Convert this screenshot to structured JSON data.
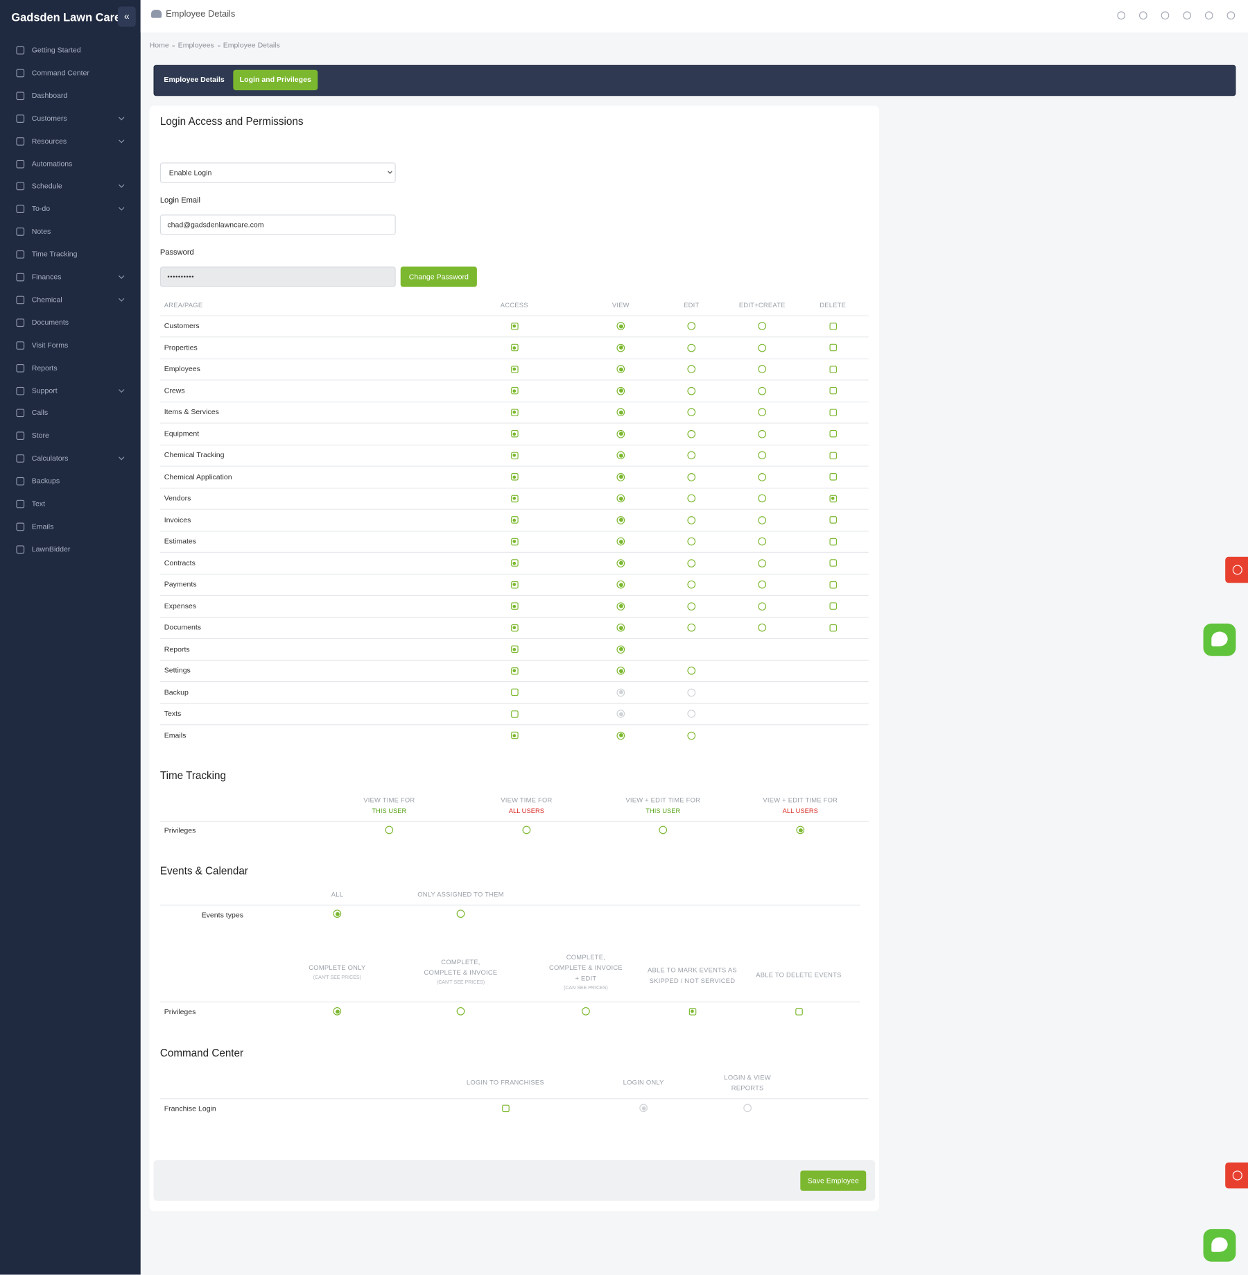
{
  "sidebar": {
    "brand": "Gadsden Lawn Care",
    "items": [
      {
        "label": "Getting Started",
        "expandable": false
      },
      {
        "label": "Command Center",
        "expandable": false
      },
      {
        "label": "Dashboard",
        "expandable": false
      },
      {
        "label": "Customers",
        "expandable": true
      },
      {
        "label": "Resources",
        "expandable": true
      },
      {
        "label": "Automations",
        "expandable": false
      },
      {
        "label": "Schedule",
        "expandable": true
      },
      {
        "label": "To-do",
        "expandable": true
      },
      {
        "label": "Notes",
        "expandable": false
      },
      {
        "label": "Time Tracking",
        "expandable": false
      },
      {
        "label": "Finances",
        "expandable": true
      },
      {
        "label": "Chemical",
        "expandable": true
      },
      {
        "label": "Documents",
        "expandable": false
      },
      {
        "label": "Visit Forms",
        "expandable": false
      },
      {
        "label": "Reports",
        "expandable": false
      },
      {
        "label": "Support",
        "expandable": true
      },
      {
        "label": "Calls",
        "expandable": false
      },
      {
        "label": "Store",
        "expandable": false
      },
      {
        "label": "Calculators",
        "expandable": true
      },
      {
        "label": "Backups",
        "expandable": false
      },
      {
        "label": "Text",
        "expandable": false
      },
      {
        "label": "Emails",
        "expandable": false
      },
      {
        "label": "LawnBidder",
        "expandable": false
      }
    ]
  },
  "header": {
    "title": "Employee Details"
  },
  "breadcrumb": [
    "Home",
    "Employees",
    "Employee Details"
  ],
  "tabs": [
    {
      "label": "Employee Details",
      "active": false
    },
    {
      "label": "Login and Privileges",
      "active": true
    }
  ],
  "login": {
    "title": "Login Access and Permissions",
    "select": "Enable Login",
    "email_label": "Login Email",
    "email": "chad@gadsdenlawncare.com",
    "password_label": "Password",
    "password": "••••••••••",
    "change_button": "Change Password"
  },
  "permissions": {
    "columns": [
      "AREA/PAGE",
      "ACCESS",
      "VIEW",
      "EDIT",
      "EDIT+CREATE",
      "DELETE"
    ],
    "kinds": [
      "checkbox",
      "radio",
      "radio",
      "radio",
      "checkbox"
    ],
    "rows": [
      {
        "area": "Customers",
        "cells": [
          "on",
          "on",
          "off",
          "off",
          "off"
        ]
      },
      {
        "area": "Properties",
        "cells": [
          "on",
          "on",
          "off",
          "off",
          "off"
        ]
      },
      {
        "area": "Employees",
        "cells": [
          "on",
          "on",
          "off",
          "off",
          "off"
        ]
      },
      {
        "area": "Crews",
        "cells": [
          "on",
          "on",
          "off",
          "off",
          "off"
        ]
      },
      {
        "area": "Items & Services",
        "cells": [
          "on",
          "on",
          "off",
          "off",
          "off"
        ]
      },
      {
        "area": "Equipment",
        "cells": [
          "on",
          "on",
          "off",
          "off",
          "off"
        ]
      },
      {
        "area": "Chemical Tracking",
        "cells": [
          "on",
          "on",
          "off",
          "off",
          "off"
        ]
      },
      {
        "area": "Chemical Application",
        "cells": [
          "on",
          "on",
          "off",
          "off",
          "off"
        ]
      },
      {
        "area": "Vendors",
        "cells": [
          "on",
          "on",
          "off",
          "off",
          "on"
        ]
      },
      {
        "area": "Invoices",
        "cells": [
          "on",
          "on",
          "off",
          "off",
          "off"
        ]
      },
      {
        "area": "Estimates",
        "cells": [
          "on",
          "on",
          "off",
          "off",
          "off"
        ]
      },
      {
        "area": "Contracts",
        "cells": [
          "on",
          "on",
          "off",
          "off",
          "off"
        ]
      },
      {
        "area": "Payments",
        "cells": [
          "on",
          "on",
          "off",
          "off",
          "off"
        ]
      },
      {
        "area": "Expenses",
        "cells": [
          "on",
          "on",
          "off",
          "off",
          "off"
        ]
      },
      {
        "area": "Documents",
        "cells": [
          "on",
          "on",
          "off",
          "off",
          "off"
        ]
      },
      {
        "area": "Reports",
        "cells": [
          "on",
          "on",
          null,
          null,
          null
        ]
      },
      {
        "area": "Settings",
        "cells": [
          "on",
          "on",
          "off",
          null,
          null
        ]
      },
      {
        "area": "Backup",
        "cells": [
          "off",
          "disabled-on",
          "disabled-off",
          null,
          null
        ]
      },
      {
        "area": "Texts",
        "cells": [
          "off",
          "disabled-on",
          "disabled-off",
          null,
          null
        ]
      },
      {
        "area": "Emails",
        "cells": [
          "on",
          "on",
          "off",
          null,
          null
        ]
      }
    ]
  },
  "time_tracking": {
    "title": "Time Tracking",
    "columns": [
      {
        "lines": [
          "VIEW TIME FOR"
        ],
        "highlight": "THIS USER",
        "highlight_color": "#5aa41c"
      },
      {
        "lines": [
          "VIEW TIME FOR"
        ],
        "highlight": "ALL USERS",
        "highlight_color": "#d9312b"
      },
      {
        "lines": [
          "VIEW + EDIT TIME FOR"
        ],
        "highlight": "THIS USER",
        "highlight_color": "#5aa41c"
      },
      {
        "lines": [
          "VIEW + EDIT TIME FOR"
        ],
        "highlight": "ALL USERS",
        "highlight_color": "#d9312b"
      }
    ],
    "row": {
      "label": "Privileges",
      "kind": "radio",
      "cells": [
        "off",
        "off",
        "off",
        "on"
      ]
    }
  },
  "events": {
    "title": "Events & Calendar",
    "type_columns": [
      "ALL",
      "ONLY ASSIGNED TO THEM"
    ],
    "type_row": {
      "label": "Events types",
      "kind": "radio",
      "cells": [
        "on",
        "off"
      ]
    },
    "privilege_columns": [
      {
        "lines": [
          "COMPLETE ONLY"
        ],
        "note": "(CAN'T SEE PRICES)"
      },
      {
        "lines": [
          "COMPLETE,",
          "COMPLETE & INVOICE"
        ],
        "note": "(CAN'T SEE PRICES)"
      },
      {
        "lines": [
          "COMPLETE,",
          "COMPLETE & INVOICE",
          "+ EDIT"
        ],
        "note": "(CAN SEE PRICES)"
      },
      {
        "lines": [
          "ABLE TO MARK EVENTS AS",
          "SKIPPED / NOT SERVICED"
        ],
        "note": null
      },
      {
        "lines": [
          "ABLE TO DELETE EVENTS"
        ],
        "note": null
      }
    ],
    "privilege_row": {
      "label": "Privileges",
      "kinds": [
        "radio",
        "radio",
        "radio",
        "checkbox",
        "checkbox"
      ],
      "cells": [
        "on",
        "off",
        "off",
        "on",
        "off"
      ]
    }
  },
  "command_center": {
    "title": "Command Center",
    "columns": [
      {
        "lines": [
          "LOGIN TO FRANCHISES"
        ]
      },
      {
        "lines": [
          "LOGIN ONLY"
        ]
      },
      {
        "lines": [
          "LOGIN & VIEW",
          "REPORTS"
        ]
      }
    ],
    "row": {
      "label": "Franchise Login",
      "kinds": [
        "checkbox",
        "radio",
        "radio"
      ],
      "cells": [
        "off",
        "disabled-on",
        "disabled-off"
      ]
    }
  },
  "save_button": "Save Employee"
}
